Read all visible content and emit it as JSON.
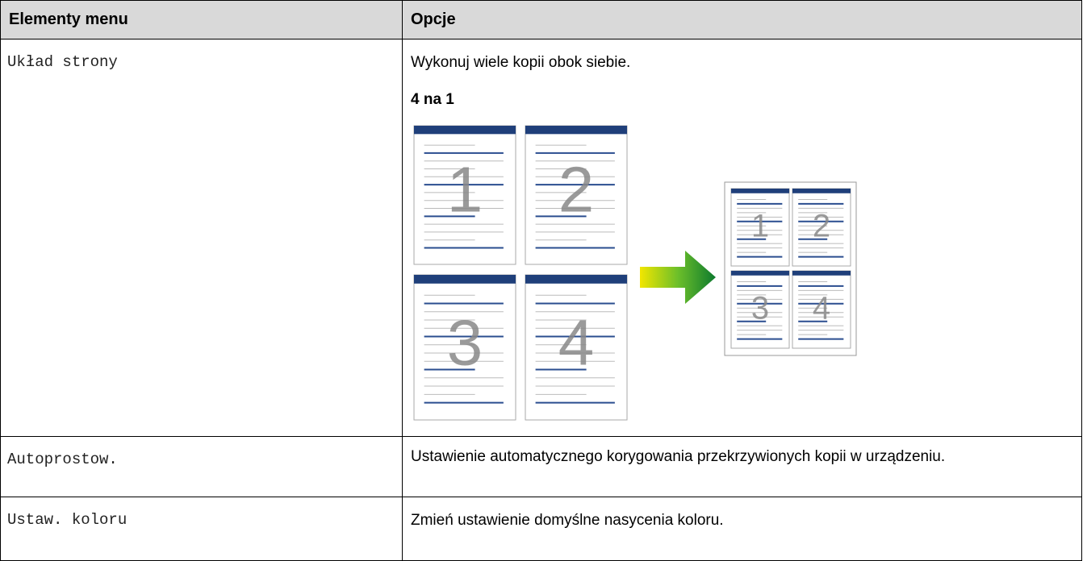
{
  "table": {
    "header": [
      "Elementy menu",
      "Opcje"
    ],
    "rows": [
      {
        "item": "Układ strony",
        "description": "Wykonuj wiele kopii obok siebie.",
        "option": "4 na 1",
        "illustration_pages": [
          "1",
          "2",
          "3",
          "4"
        ]
      },
      {
        "item": "Autoprostow.",
        "description": "Ustawienie automatycznego korygowania przekrzywionych kopii w urządzeniu."
      },
      {
        "item": "Ustaw. koloru",
        "description": "Zmień ustawienie domyślne nasycenia koloru."
      }
    ]
  }
}
